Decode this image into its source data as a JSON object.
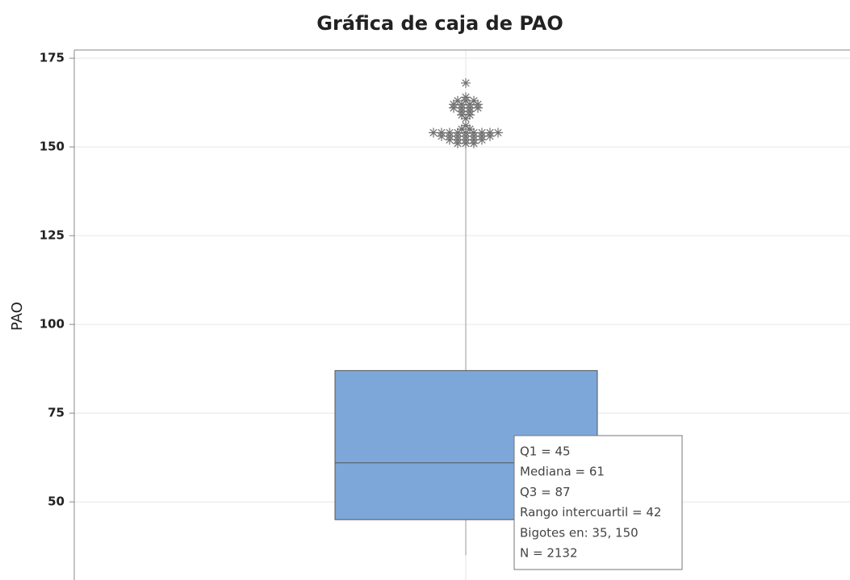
{
  "chart_data": {
    "type": "box",
    "title": "Gráfica de caja de PAO",
    "y_label": "PAO",
    "q1": 45,
    "median": 61,
    "q3": 87,
    "whiskers": [
      35,
      150
    ],
    "outliers": [
      168,
      164,
      163,
      163,
      163,
      162,
      162,
      162,
      162,
      161,
      161,
      161,
      161,
      160,
      160,
      159,
      159,
      158,
      156,
      155,
      155,
      154,
      154,
      154,
      154,
      154,
      154,
      154,
      154,
      154,
      153,
      153,
      153,
      153,
      153,
      153,
      153,
      152,
      152,
      152,
      152,
      152,
      151,
      151,
      151
    ],
    "color": "#7da7d8",
    "outlier_color": "#707070",
    "ylim": [
      28,
      177.3
    ],
    "yticks": [
      50,
      75,
      100,
      125,
      150,
      175
    ],
    "grid": true,
    "tooltip": [
      "Q1 = 45",
      "Mediana = 61",
      "Q3 = 87",
      "Rango intercuartil = 42",
      "Bigotes en: 35, 150",
      "N = 2132"
    ]
  }
}
